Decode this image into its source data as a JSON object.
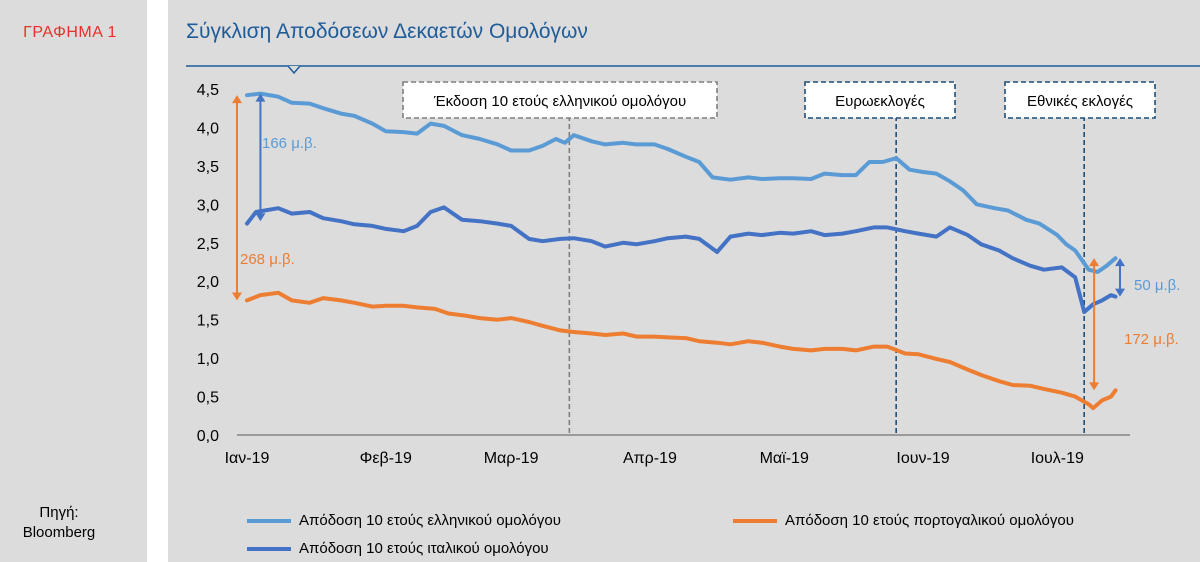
{
  "sidebar": {
    "graph_label": "ΓΡΑΦΗΜΑ 1",
    "source_line1": "Πηγή:",
    "source_line2": "Bloomberg"
  },
  "chart_data": {
    "type": "line",
    "title": "Σύγκλιση Αποδόσεων Δεκαετών Ομολόγων",
    "xlabel": "",
    "ylabel": "",
    "ylim": [
      0,
      4.5
    ],
    "y_ticks": [
      "0,0",
      "0,5",
      "1,0",
      "1,5",
      "2,0",
      "2,5",
      "3,0",
      "3,5",
      "4,0",
      "4,5"
    ],
    "x_tick_labels": [
      "Ιαν-19",
      "Φεβ-19",
      "Μαρ-19",
      "Απρ-19",
      "Μαϊ-19",
      "Ιουν-19",
      "Ιουλ-19"
    ],
    "x_tick_dates": [
      "2019-01-01",
      "2019-02-01",
      "2019-03-01",
      "2019-04-01",
      "2019-05-01",
      "2019-06-01",
      "2019-07-01"
    ],
    "x_range": [
      "2019-01-01",
      "2019-07-15"
    ],
    "series": [
      {
        "name": "Απόδοση 10 ετούς ελληνικού ομολόγου",
        "color": "#5b9bd5",
        "points": [
          [
            "2019-01-01",
            4.42
          ],
          [
            "2019-01-04",
            4.44
          ],
          [
            "2019-01-08",
            4.4
          ],
          [
            "2019-01-11",
            4.32
          ],
          [
            "2019-01-15",
            4.31
          ],
          [
            "2019-01-18",
            4.25
          ],
          [
            "2019-01-22",
            4.18
          ],
          [
            "2019-01-25",
            4.15
          ],
          [
            "2019-01-29",
            4.05
          ],
          [
            "2019-02-01",
            3.95
          ],
          [
            "2019-02-05",
            3.94
          ],
          [
            "2019-02-08",
            3.92
          ],
          [
            "2019-02-11",
            4.05
          ],
          [
            "2019-02-14",
            4.02
          ],
          [
            "2019-02-18",
            3.9
          ],
          [
            "2019-02-22",
            3.85
          ],
          [
            "2019-02-26",
            3.78
          ],
          [
            "2019-03-01",
            3.7
          ],
          [
            "2019-03-05",
            3.7
          ],
          [
            "2019-03-08",
            3.76
          ],
          [
            "2019-03-11",
            3.85
          ],
          [
            "2019-03-13",
            3.8
          ],
          [
            "2019-03-15",
            3.9
          ],
          [
            "2019-03-19",
            3.82
          ],
          [
            "2019-03-22",
            3.78
          ],
          [
            "2019-03-26",
            3.8
          ],
          [
            "2019-03-29",
            3.78
          ],
          [
            "2019-04-02",
            3.78
          ],
          [
            "2019-04-05",
            3.72
          ],
          [
            "2019-04-09",
            3.62
          ],
          [
            "2019-04-12",
            3.55
          ],
          [
            "2019-04-15",
            3.35
          ],
          [
            "2019-04-19",
            3.32
          ],
          [
            "2019-04-23",
            3.35
          ],
          [
            "2019-04-26",
            3.33
          ],
          [
            "2019-04-30",
            3.34
          ],
          [
            "2019-05-03",
            3.34
          ],
          [
            "2019-05-07",
            3.33
          ],
          [
            "2019-05-10",
            3.4
          ],
          [
            "2019-05-14",
            3.38
          ],
          [
            "2019-05-17",
            3.38
          ],
          [
            "2019-05-20",
            3.55
          ],
          [
            "2019-05-23",
            3.55
          ],
          [
            "2019-05-26",
            3.6
          ],
          [
            "2019-05-29",
            3.45
          ],
          [
            "2019-06-01",
            3.42
          ],
          [
            "2019-06-04",
            3.4
          ],
          [
            "2019-06-07",
            3.3
          ],
          [
            "2019-06-10",
            3.18
          ],
          [
            "2019-06-13",
            3.0
          ],
          [
            "2019-06-17",
            2.95
          ],
          [
            "2019-06-20",
            2.92
          ],
          [
            "2019-06-24",
            2.8
          ],
          [
            "2019-06-27",
            2.75
          ],
          [
            "2019-07-01",
            2.6
          ],
          [
            "2019-07-03",
            2.48
          ],
          [
            "2019-07-05",
            2.4
          ],
          [
            "2019-07-08",
            2.15
          ],
          [
            "2019-07-10",
            2.12
          ],
          [
            "2019-07-12",
            2.2
          ],
          [
            "2019-07-14",
            2.3
          ]
        ]
      },
      {
        "name": "Απόδοση 10 ετούς πορτογαλικού ομολόγου",
        "color": "#ed7d31",
        "points": [
          [
            "2019-01-01",
            1.75
          ],
          [
            "2019-01-04",
            1.82
          ],
          [
            "2019-01-08",
            1.85
          ],
          [
            "2019-01-11",
            1.75
          ],
          [
            "2019-01-15",
            1.72
          ],
          [
            "2019-01-18",
            1.78
          ],
          [
            "2019-01-22",
            1.75
          ],
          [
            "2019-01-25",
            1.72
          ],
          [
            "2019-01-29",
            1.67
          ],
          [
            "2019-02-01",
            1.68
          ],
          [
            "2019-02-05",
            1.68
          ],
          [
            "2019-02-08",
            1.66
          ],
          [
            "2019-02-12",
            1.64
          ],
          [
            "2019-02-15",
            1.58
          ],
          [
            "2019-02-19",
            1.55
          ],
          [
            "2019-02-22",
            1.52
          ],
          [
            "2019-02-26",
            1.5
          ],
          [
            "2019-03-01",
            1.52
          ],
          [
            "2019-03-05",
            1.47
          ],
          [
            "2019-03-08",
            1.42
          ],
          [
            "2019-03-12",
            1.36
          ],
          [
            "2019-03-15",
            1.34
          ],
          [
            "2019-03-19",
            1.32
          ],
          [
            "2019-03-22",
            1.3
          ],
          [
            "2019-03-26",
            1.32
          ],
          [
            "2019-03-29",
            1.28
          ],
          [
            "2019-04-02",
            1.28
          ],
          [
            "2019-04-05",
            1.27
          ],
          [
            "2019-04-09",
            1.26
          ],
          [
            "2019-04-12",
            1.22
          ],
          [
            "2019-04-16",
            1.2
          ],
          [
            "2019-04-19",
            1.18
          ],
          [
            "2019-04-23",
            1.22
          ],
          [
            "2019-04-26",
            1.2
          ],
          [
            "2019-04-30",
            1.15
          ],
          [
            "2019-05-03",
            1.12
          ],
          [
            "2019-05-07",
            1.1
          ],
          [
            "2019-05-10",
            1.12
          ],
          [
            "2019-05-14",
            1.12
          ],
          [
            "2019-05-17",
            1.1
          ],
          [
            "2019-05-21",
            1.15
          ],
          [
            "2019-05-24",
            1.15
          ],
          [
            "2019-05-28",
            1.06
          ],
          [
            "2019-05-31",
            1.05
          ],
          [
            "2019-06-04",
            0.99
          ],
          [
            "2019-06-07",
            0.95
          ],
          [
            "2019-06-11",
            0.85
          ],
          [
            "2019-06-14",
            0.78
          ],
          [
            "2019-06-18",
            0.7
          ],
          [
            "2019-06-21",
            0.65
          ],
          [
            "2019-06-25",
            0.64
          ],
          [
            "2019-06-28",
            0.6
          ],
          [
            "2019-07-02",
            0.55
          ],
          [
            "2019-07-05",
            0.5
          ],
          [
            "2019-07-08",
            0.4
          ],
          [
            "2019-07-09",
            0.35
          ],
          [
            "2019-07-11",
            0.45
          ],
          [
            "2019-07-13",
            0.5
          ],
          [
            "2019-07-14",
            0.58
          ]
        ]
      },
      {
        "name": "Απόδοση 10 ετούς ιταλικού ομολόγου",
        "color": "#4472c4",
        "points": [
          [
            "2019-01-01",
            2.75
          ],
          [
            "2019-01-03",
            2.9
          ],
          [
            "2019-01-08",
            2.95
          ],
          [
            "2019-01-11",
            2.88
          ],
          [
            "2019-01-15",
            2.9
          ],
          [
            "2019-01-18",
            2.82
          ],
          [
            "2019-01-22",
            2.78
          ],
          [
            "2019-01-25",
            2.74
          ],
          [
            "2019-01-29",
            2.72
          ],
          [
            "2019-02-01",
            2.68
          ],
          [
            "2019-02-05",
            2.65
          ],
          [
            "2019-02-08",
            2.72
          ],
          [
            "2019-02-11",
            2.9
          ],
          [
            "2019-02-14",
            2.96
          ],
          [
            "2019-02-18",
            2.8
          ],
          [
            "2019-02-22",
            2.78
          ],
          [
            "2019-02-26",
            2.75
          ],
          [
            "2019-03-01",
            2.72
          ],
          [
            "2019-03-05",
            2.55
          ],
          [
            "2019-03-08",
            2.52
          ],
          [
            "2019-03-12",
            2.55
          ],
          [
            "2019-03-15",
            2.56
          ],
          [
            "2019-03-19",
            2.52
          ],
          [
            "2019-03-22",
            2.45
          ],
          [
            "2019-03-26",
            2.5
          ],
          [
            "2019-03-29",
            2.48
          ],
          [
            "2019-04-02",
            2.52
          ],
          [
            "2019-04-05",
            2.56
          ],
          [
            "2019-04-09",
            2.58
          ],
          [
            "2019-04-12",
            2.55
          ],
          [
            "2019-04-16",
            2.38
          ],
          [
            "2019-04-19",
            2.58
          ],
          [
            "2019-04-23",
            2.62
          ],
          [
            "2019-04-26",
            2.6
          ],
          [
            "2019-04-30",
            2.63
          ],
          [
            "2019-05-03",
            2.62
          ],
          [
            "2019-05-07",
            2.65
          ],
          [
            "2019-05-10",
            2.6
          ],
          [
            "2019-05-14",
            2.62
          ],
          [
            "2019-05-17",
            2.65
          ],
          [
            "2019-05-21",
            2.7
          ],
          [
            "2019-05-24",
            2.7
          ],
          [
            "2019-05-28",
            2.65
          ],
          [
            "2019-05-31",
            2.62
          ],
          [
            "2019-06-04",
            2.58
          ],
          [
            "2019-06-07",
            2.7
          ],
          [
            "2019-06-11",
            2.6
          ],
          [
            "2019-06-14",
            2.48
          ],
          [
            "2019-06-18",
            2.4
          ],
          [
            "2019-06-21",
            2.3
          ],
          [
            "2019-06-25",
            2.2
          ],
          [
            "2019-06-28",
            2.15
          ],
          [
            "2019-07-02",
            2.18
          ],
          [
            "2019-07-05",
            2.05
          ],
          [
            "2019-07-07",
            1.6
          ],
          [
            "2019-07-09",
            1.7
          ],
          [
            "2019-07-11",
            1.75
          ],
          [
            "2019-07-13",
            1.82
          ],
          [
            "2019-07-14",
            1.8
          ]
        ]
      }
    ],
    "event_markers": [
      {
        "label": "Έκδοση 10 ετούς ελληνικού ομολόγου",
        "date": "2019-03-14",
        "color": "#7f7f7f"
      },
      {
        "label": "Ευρωεκλογές",
        "date": "2019-05-26",
        "color": "#1f4e79"
      },
      {
        "label": "Εθνικές εκλογές",
        "date": "2019-07-07",
        "color": "#1f4e79"
      }
    ],
    "spread_annotations": [
      {
        "label": "166 μ.β.",
        "date": "2019-01-04",
        "from": 2.78,
        "to": 4.44,
        "color": "#4472c4",
        "label_color": "#5b9bd5"
      },
      {
        "label": "268 μ.β.",
        "date": "2019-01-01",
        "from": 1.75,
        "to": 4.42,
        "color": "#ed7d31",
        "label_color": "#ed7d31"
      },
      {
        "label": "50 μ.β.",
        "date": "2019-07-15",
        "from": 1.8,
        "to": 2.3,
        "color": "#4472c4",
        "label_color": "#5b9bd5"
      },
      {
        "label": "172 μ.β.",
        "date": "2019-07-11",
        "from": 0.58,
        "to": 2.3,
        "color": "#ed7d31",
        "label_color": "#ed7d31"
      }
    ],
    "legend_placement": "bottom",
    "grid": false
  }
}
